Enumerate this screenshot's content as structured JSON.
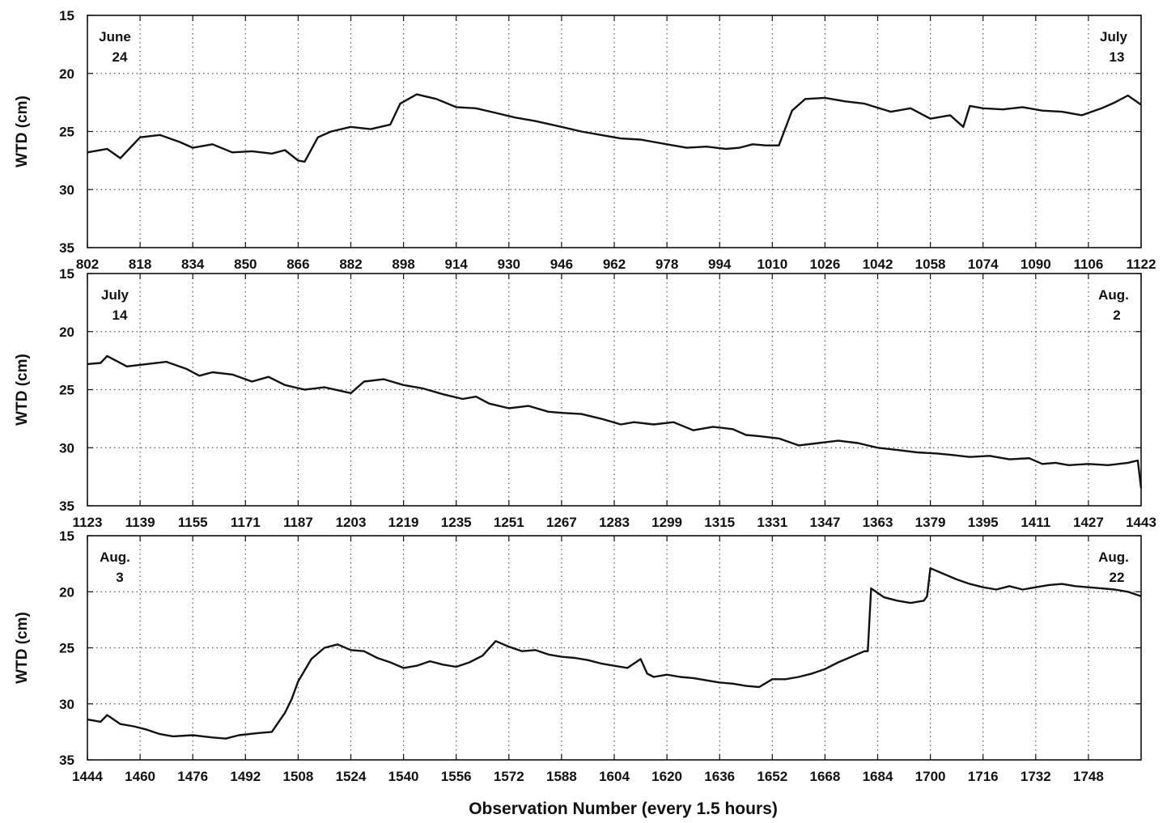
{
  "figure": {
    "xlabel": "Observation Number (every 1.5 hours)"
  },
  "chart_data": [
    {
      "type": "line",
      "ylabel": "WTD (cm)",
      "ylim": [
        15,
        35
      ],
      "y_inverted": true,
      "yticks": [
        15,
        20,
        25,
        30,
        35
      ],
      "xlim": [
        802,
        1122
      ],
      "xticks": [
        802,
        818,
        834,
        850,
        866,
        882,
        898,
        914,
        930,
        946,
        962,
        978,
        994,
        1010,
        1026,
        1042,
        1058,
        1074,
        1090,
        1106,
        1122
      ],
      "grid": true,
      "date_left": [
        "June",
        "24"
      ],
      "date_right": [
        "July",
        "13"
      ],
      "series": [
        {
          "x": [
            802,
            808,
            812,
            818,
            824,
            830,
            834,
            840,
            846,
            852,
            858,
            862,
            866,
            868,
            872,
            876,
            882,
            888,
            894,
            897,
            902,
            908,
            914,
            920,
            926,
            932,
            938,
            946,
            952,
            958,
            964,
            970,
            978,
            984,
            990,
            996,
            1000,
            1004,
            1008,
            1012,
            1016,
            1020,
            1026,
            1032,
            1038,
            1046,
            1052,
            1058,
            1064,
            1068,
            1070,
            1074,
            1080,
            1086,
            1092,
            1098,
            1104,
            1110,
            1114,
            1118,
            1122
          ],
          "y": [
            26.8,
            26.5,
            27.3,
            25.5,
            25.3,
            25.9,
            26.4,
            26.1,
            26.8,
            26.7,
            26.9,
            26.6,
            27.5,
            27.6,
            25.5,
            25.0,
            24.6,
            24.8,
            24.4,
            22.6,
            21.8,
            22.2,
            22.9,
            23.0,
            23.4,
            23.8,
            24.1,
            24.6,
            25.0,
            25.3,
            25.6,
            25.7,
            26.1,
            26.4,
            26.3,
            26.5,
            26.4,
            26.1,
            26.2,
            26.2,
            23.2,
            22.2,
            22.1,
            22.4,
            22.6,
            23.3,
            23.0,
            23.9,
            23.6,
            24.6,
            22.8,
            23.0,
            23.1,
            22.9,
            23.2,
            23.3,
            23.6,
            23.0,
            22.5,
            21.9,
            22.7
          ]
        }
      ]
    },
    {
      "type": "line",
      "ylabel": "WTD (cm)",
      "ylim": [
        15,
        35
      ],
      "y_inverted": true,
      "yticks": [
        15,
        20,
        25,
        30,
        35
      ],
      "xlim": [
        1123,
        1443
      ],
      "xticks": [
        1123,
        1139,
        1155,
        1171,
        1187,
        1203,
        1219,
        1235,
        1251,
        1267,
        1283,
        1299,
        1315,
        1331,
        1347,
        1363,
        1379,
        1395,
        1411,
        1427,
        1443
      ],
      "grid": true,
      "date_left": [
        "July",
        "14"
      ],
      "date_right": [
        "Aug.",
        "2"
      ],
      "series": [
        {
          "x": [
            1123,
            1127,
            1129,
            1135,
            1141,
            1147,
            1153,
            1157,
            1161,
            1167,
            1173,
            1178,
            1183,
            1189,
            1195,
            1203,
            1207,
            1213,
            1219,
            1225,
            1231,
            1237,
            1241,
            1245,
            1251,
            1257,
            1263,
            1267,
            1273,
            1279,
            1285,
            1289,
            1295,
            1301,
            1307,
            1313,
            1319,
            1323,
            1327,
            1333,
            1339,
            1345,
            1351,
            1357,
            1363,
            1369,
            1375,
            1381,
            1385,
            1391,
            1397,
            1403,
            1409,
            1413,
            1417,
            1421,
            1427,
            1433,
            1439,
            1442,
            1443
          ],
          "y": [
            22.8,
            22.7,
            22.1,
            23.0,
            22.8,
            22.6,
            23.2,
            23.8,
            23.5,
            23.7,
            24.3,
            23.9,
            24.6,
            25.0,
            24.8,
            25.3,
            24.3,
            24.1,
            24.6,
            24.9,
            25.4,
            25.8,
            25.6,
            26.2,
            26.6,
            26.4,
            26.9,
            27.0,
            27.1,
            27.5,
            28.0,
            27.8,
            28.0,
            27.8,
            28.5,
            28.2,
            28.4,
            28.9,
            29.0,
            29.2,
            29.8,
            29.6,
            29.4,
            29.6,
            30.0,
            30.2,
            30.4,
            30.5,
            30.6,
            30.8,
            30.7,
            31.0,
            30.9,
            31.4,
            31.3,
            31.5,
            31.4,
            31.5,
            31.3,
            31.1,
            33.5
          ]
        }
      ]
    },
    {
      "type": "line",
      "ylabel": "WTD (cm)",
      "ylim": [
        15,
        35
      ],
      "y_inverted": true,
      "yticks": [
        15,
        20,
        25,
        30,
        35
      ],
      "xlim": [
        1444,
        1764
      ],
      "xticks": [
        1444,
        1460,
        1476,
        1492,
        1508,
        1524,
        1540,
        1556,
        1572,
        1588,
        1604,
        1620,
        1636,
        1652,
        1668,
        1684,
        1700,
        1716,
        1732,
        1748
      ],
      "grid": true,
      "date_left": [
        "Aug.",
        "3"
      ],
      "date_right": [
        "Aug.",
        "22"
      ],
      "series": [
        {
          "x": [
            1444,
            1448,
            1450,
            1454,
            1458,
            1462,
            1466,
            1470,
            1476,
            1482,
            1486,
            1490,
            1496,
            1500,
            1504,
            1506,
            1508,
            1512,
            1516,
            1520,
            1524,
            1528,
            1532,
            1536,
            1540,
            1544,
            1548,
            1552,
            1556,
            1560,
            1564,
            1568,
            1572,
            1576,
            1580,
            1584,
            1588,
            1592,
            1596,
            1600,
            1604,
            1608,
            1612,
            1614,
            1616,
            1620,
            1624,
            1628,
            1632,
            1636,
            1640,
            1644,
            1648,
            1652,
            1656,
            1660,
            1664,
            1668,
            1672,
            1676,
            1680,
            1681,
            1682,
            1686,
            1690,
            1694,
            1698,
            1699,
            1700,
            1704,
            1708,
            1712,
            1716,
            1720,
            1724,
            1728,
            1732,
            1736,
            1740,
            1744,
            1748,
            1752,
            1756,
            1760,
            1764
          ],
          "y": [
            31.4,
            31.6,
            31.0,
            31.8,
            32.0,
            32.3,
            32.7,
            32.9,
            32.8,
            33.0,
            33.1,
            32.8,
            32.6,
            32.5,
            30.8,
            29.6,
            28.0,
            26.0,
            25.0,
            24.7,
            25.2,
            25.3,
            25.9,
            26.3,
            26.8,
            26.6,
            26.2,
            26.5,
            26.7,
            26.3,
            25.7,
            24.4,
            24.9,
            25.3,
            25.2,
            25.6,
            25.8,
            25.9,
            26.1,
            26.4,
            26.6,
            26.8,
            26.0,
            27.3,
            27.6,
            27.4,
            27.6,
            27.7,
            27.9,
            28.1,
            28.2,
            28.4,
            28.5,
            27.8,
            27.8,
            27.6,
            27.3,
            26.9,
            26.3,
            25.8,
            25.3,
            25.3,
            19.7,
            20.5,
            20.8,
            21.0,
            20.8,
            20.4,
            17.9,
            18.4,
            18.9,
            19.3,
            19.6,
            19.8,
            19.5,
            19.8,
            19.6,
            19.4,
            19.3,
            19.5,
            19.6,
            19.7,
            19.8,
            20.0,
            20.4
          ]
        }
      ]
    }
  ]
}
